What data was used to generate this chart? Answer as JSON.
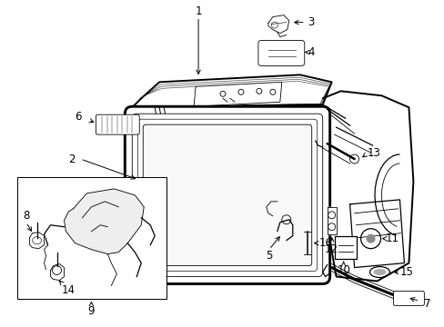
{
  "background_color": "#ffffff",
  "line_color": "#000000",
  "fig_width": 4.89,
  "fig_height": 3.6,
  "dpi": 100,
  "lw_main": 1.4,
  "lw_med": 0.9,
  "lw_thin": 0.6,
  "label_fontsize": 8.5
}
